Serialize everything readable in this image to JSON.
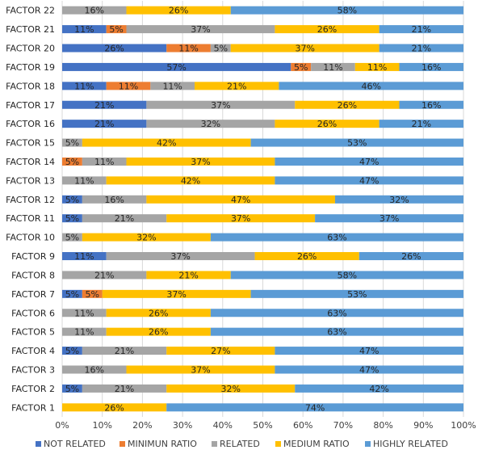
{
  "chart_data": {
    "type": "bar",
    "orientation": "horizontal",
    "stacked": true,
    "percent_stacked": true,
    "title": "",
    "xlabel": "",
    "ylabel": "",
    "xlim": [
      0,
      100
    ],
    "x_ticks": [
      "0%",
      "10%",
      "20%",
      "30%",
      "40%",
      "50%",
      "60%",
      "70%",
      "80%",
      "90%",
      "100%"
    ],
    "grid": {
      "vertical": true,
      "horizontal": false
    },
    "legend_position": "bottom",
    "categories": [
      "FACTOR 22",
      "FACTOR 21",
      "FACTOR 20",
      "FACTOR 19",
      "FACTOR 18",
      "FACTOR 17",
      "FACTOR 16",
      "FACTOR 15",
      "FACTOR 14",
      "FACTOR 13",
      "FACTOR 12",
      "FACTOR 11",
      "FACTOR 10",
      "FACTOR 9",
      "FACTOR 8",
      "FACTOR 7",
      "FACTOR 6",
      "FACTOR 5",
      "FACTOR 4",
      "FACTOR 3",
      "FACTOR 2",
      "FACTOR 1"
    ],
    "series": [
      {
        "name": "NOT RELATED",
        "color": "#4472C4",
        "values": [
          0,
          11,
          26,
          57,
          11,
          21,
          21,
          0,
          0,
          0,
          5,
          5,
          0,
          11,
          0,
          5,
          0,
          0,
          5,
          0,
          5,
          0
        ]
      },
      {
        "name": "MINIMUN RATIO",
        "color": "#ED7D31",
        "values": [
          0,
          5,
          11,
          5,
          11,
          0,
          0,
          0,
          5,
          0,
          0,
          0,
          0,
          0,
          0,
          5,
          0,
          0,
          0,
          0,
          0,
          0
        ]
      },
      {
        "name": "RELATED",
        "color": "#A5A5A5",
        "values": [
          16,
          37,
          5,
          11,
          11,
          37,
          32,
          5,
          11,
          11,
          16,
          21,
          5,
          37,
          21,
          0,
          11,
          11,
          21,
          16,
          21,
          0
        ]
      },
      {
        "name": "MEDIUM RATIO",
        "color": "#FFC000",
        "values": [
          26,
          26,
          37,
          11,
          21,
          26,
          26,
          42,
          37,
          42,
          47,
          37,
          32,
          26,
          21,
          37,
          26,
          26,
          27,
          37,
          32,
          26
        ]
      },
      {
        "name": "HIGHLY RELATED",
        "color": "#5B9BD5",
        "values": [
          58,
          21,
          21,
          16,
          46,
          16,
          21,
          53,
          47,
          47,
          32,
          37,
          63,
          26,
          58,
          53,
          63,
          63,
          47,
          47,
          42,
          74
        ]
      }
    ],
    "value_label_suffix": "%"
  }
}
